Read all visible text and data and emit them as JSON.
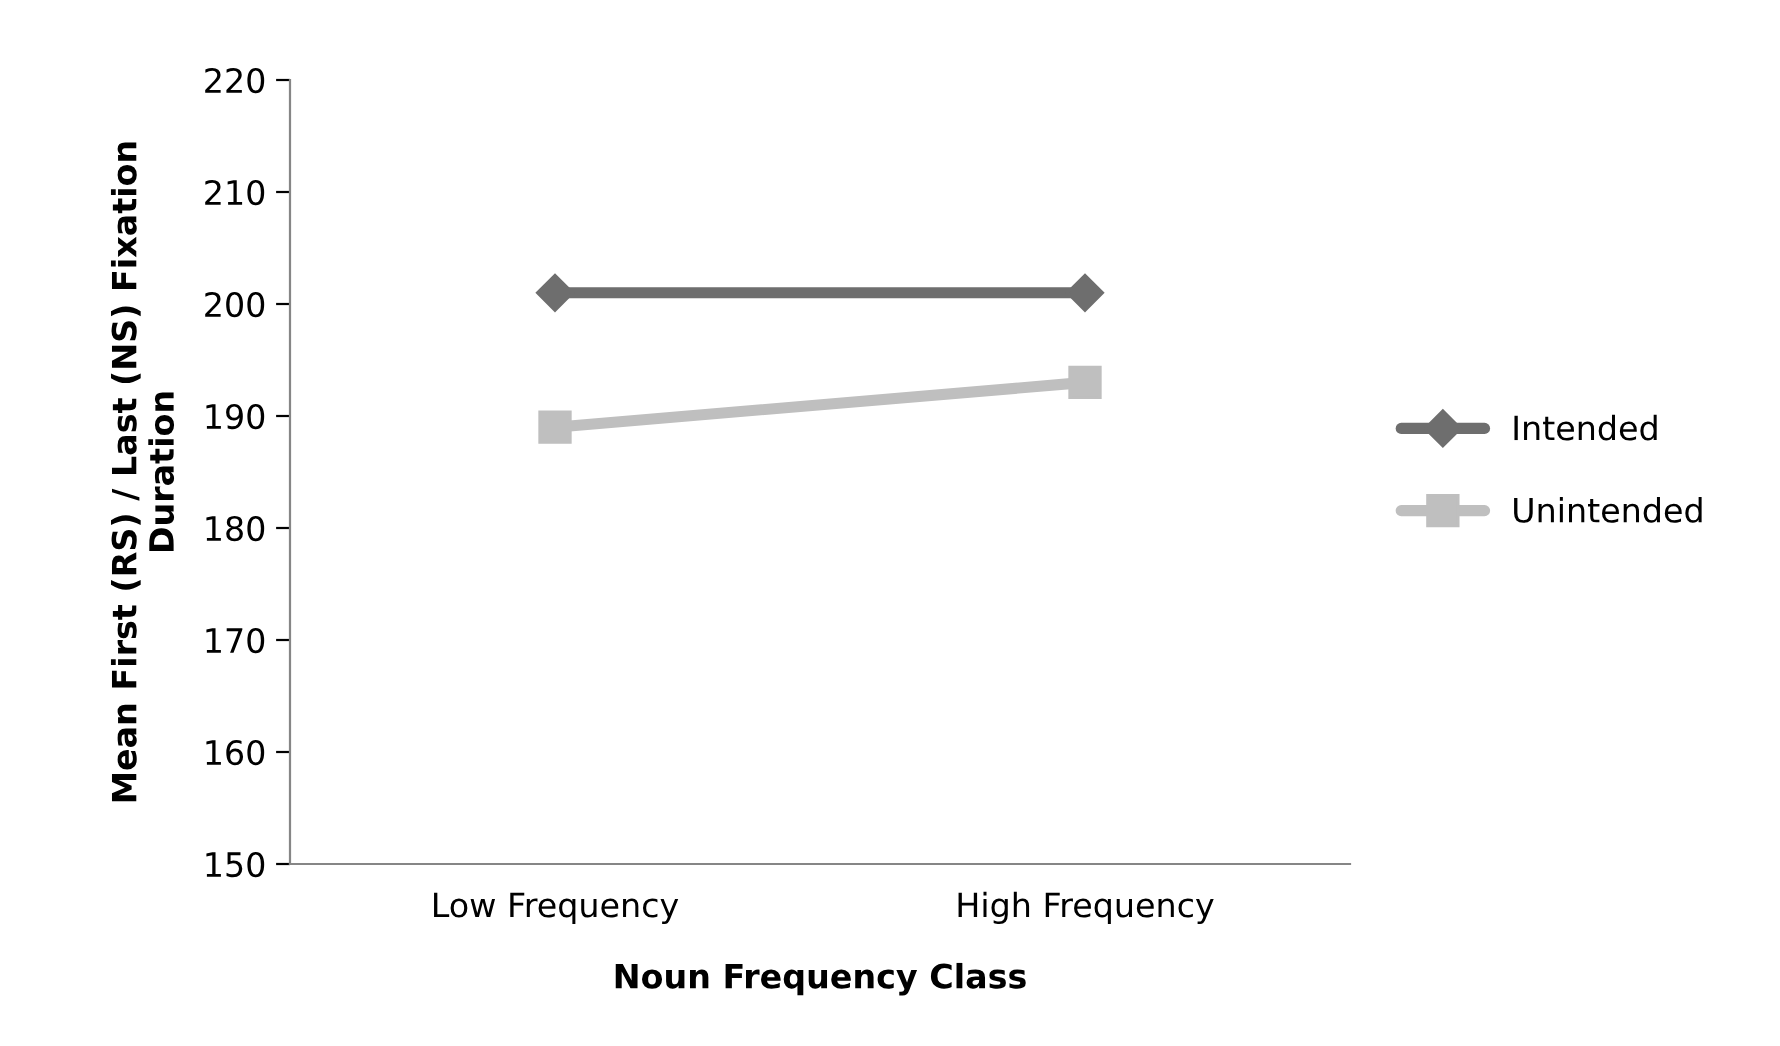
{
  "chart_data": {
    "type": "line",
    "xlabel": "Noun Frequency Class",
    "ylabel": "Mean First (RS) / Last (NS) Fixation Duration",
    "categories": [
      "Low Frequency",
      "High Frequency"
    ],
    "series": [
      {
        "name": "Intended",
        "color": "#6e6e6e",
        "values": [
          201,
          201
        ],
        "marker": "diamond"
      },
      {
        "name": "Unintended",
        "color": "#bfbfbf",
        "values": [
          189,
          193
        ],
        "marker": "square"
      }
    ],
    "ylim": [
      150,
      220
    ],
    "yticks": [
      150,
      160,
      170,
      180,
      190,
      200,
      210,
      220
    ],
    "grid": false,
    "legend": "right",
    "line_style": "solid"
  }
}
